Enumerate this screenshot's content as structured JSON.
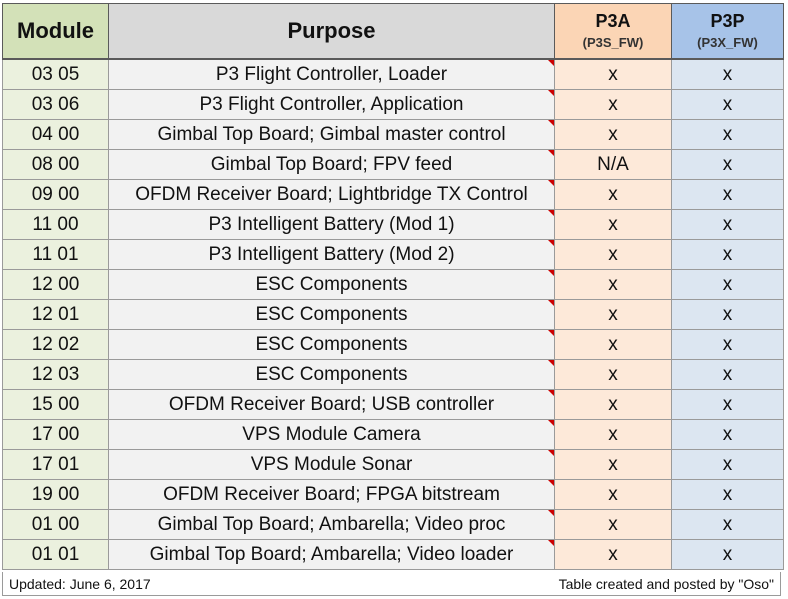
{
  "table": {
    "headers": {
      "module": "Module",
      "purpose": "Purpose",
      "p3a": "P3A",
      "p3a_sub": "(P3S_FW)",
      "p3p": "P3P",
      "p3p_sub": "(P3X_FW)"
    },
    "rows": [
      {
        "module": "03 05",
        "purpose": "P3 Flight Controller, Loader",
        "p3a": "x",
        "p3p": "x"
      },
      {
        "module": "03 06",
        "purpose": "P3 Flight Controller, Application",
        "p3a": "x",
        "p3p": "x"
      },
      {
        "module": "04 00",
        "purpose": "Gimbal Top Board; Gimbal master control",
        "p3a": "x",
        "p3p": "x"
      },
      {
        "module": "08 00",
        "purpose": "Gimbal Top Board; FPV feed",
        "p3a": "N/A",
        "p3p": "x"
      },
      {
        "module": "09 00",
        "purpose": "OFDM Receiver Board; Lightbridge TX Control",
        "p3a": "x",
        "p3p": "x"
      },
      {
        "module": "11 00",
        "purpose": "P3 Intelligent Battery (Mod 1)",
        "p3a": "x",
        "p3p": "x"
      },
      {
        "module": "11 01",
        "purpose": "P3 Intelligent Battery (Mod 2)",
        "p3a": "x",
        "p3p": "x"
      },
      {
        "module": "12 00",
        "purpose": "ESC Components",
        "p3a": "x",
        "p3p": "x"
      },
      {
        "module": "12 01",
        "purpose": "ESC Components",
        "p3a": "x",
        "p3p": "x"
      },
      {
        "module": "12 02",
        "purpose": "ESC Components",
        "p3a": "x",
        "p3p": "x"
      },
      {
        "module": "12 03",
        "purpose": "ESC Components",
        "p3a": "x",
        "p3p": "x"
      },
      {
        "module": "15 00",
        "purpose": "OFDM Receiver Board; USB controller",
        "p3a": "x",
        "p3p": "x"
      },
      {
        "module": "17 00",
        "purpose": "VPS Module Camera",
        "p3a": "x",
        "p3p": "x"
      },
      {
        "module": "17 01",
        "purpose": "VPS Module Sonar",
        "p3a": "x",
        "p3p": "x"
      },
      {
        "module": "19 00",
        "purpose": "OFDM Receiver Board; FPGA bitstream",
        "p3a": "x",
        "p3p": "x"
      },
      {
        "module": "01 00",
        "purpose": "Gimbal Top Board; Ambarella; Video proc",
        "p3a": "x",
        "p3p": "x"
      },
      {
        "module": "01 01",
        "purpose": "Gimbal Top Board; Ambarella; Video loader",
        "p3a": "x",
        "p3p": "x"
      }
    ]
  },
  "footer": {
    "updated": "Updated: June 6, 2017",
    "credit": "Table created and posted by \"Oso\""
  },
  "colors": {
    "module_header": "#d3e1b8",
    "module_cell": "#ebf1de",
    "purpose_header": "#d9d9d9",
    "purpose_cell": "#f2f2f2",
    "p3a_header": "#fbd5b5",
    "p3a_cell": "#fde9d9",
    "p3p_header": "#a7c3e8",
    "p3p_cell": "#dce6f1",
    "comment_flag": "#cc0000"
  }
}
